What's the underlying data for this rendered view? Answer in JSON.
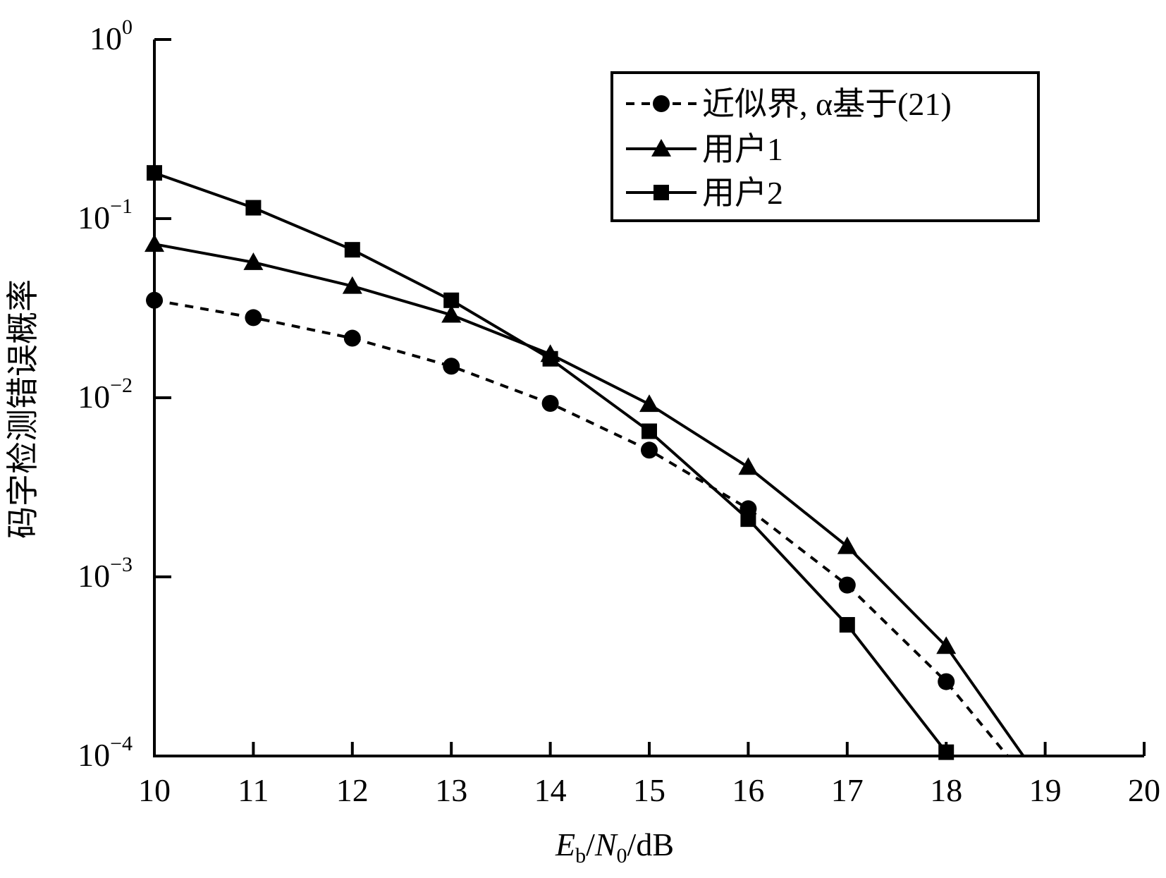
{
  "chart_data": {
    "type": "line",
    "title": "",
    "xlabel": "E_b/N_0/dB",
    "xlabel_parts": {
      "e": "E",
      "b": "b",
      "slash1": "/",
      "n": "N",
      "zero": "0",
      "rest": "/dB"
    },
    "ylabel": "码字检测错误概率",
    "x_scale": "linear",
    "y_scale": "log",
    "xlim": [
      10,
      20
    ],
    "ylim": [
      0.0001,
      1
    ],
    "x_ticks": [
      10,
      11,
      12,
      13,
      14,
      15,
      16,
      17,
      18,
      19,
      20
    ],
    "x_tick_labels": [
      "10",
      "11",
      "12",
      "13",
      "14",
      "15",
      "16",
      "17",
      "18",
      "19",
      "20"
    ],
    "y_ticks": [
      1,
      0.1,
      0.01,
      0.001,
      0.0001
    ],
    "y_tick_labels": [
      {
        "base": "10",
        "exp": "0"
      },
      {
        "base": "10",
        "exp": "−1"
      },
      {
        "base": "10",
        "exp": "−2"
      },
      {
        "base": "10",
        "exp": "−3"
      },
      {
        "base": "10",
        "exp": "−4"
      }
    ],
    "grid": false,
    "legend_position": "top-right",
    "series": [
      {
        "name": "近似界, α基于(21)",
        "marker": "circle",
        "line_style": "dashed",
        "color": "#000000",
        "x": [
          10,
          11,
          12,
          13,
          14,
          15,
          16,
          17,
          18,
          18.62
        ],
        "y": [
          0.035,
          0.028,
          0.0215,
          0.015,
          0.0093,
          0.0051,
          0.0024,
          0.0009,
          0.00026,
          0.0001
        ],
        "marked": [
          true,
          true,
          true,
          true,
          true,
          true,
          true,
          true,
          true,
          false
        ]
      },
      {
        "name": "用户1",
        "marker": "triangle",
        "line_style": "solid",
        "color": "#000000",
        "x": [
          10,
          11,
          12,
          13,
          14,
          15,
          16,
          17,
          18,
          18.78
        ],
        "y": [
          0.072,
          0.057,
          0.042,
          0.029,
          0.0175,
          0.0092,
          0.0041,
          0.00148,
          0.00041,
          0.0001
        ],
        "marked": [
          true,
          true,
          true,
          true,
          true,
          true,
          true,
          true,
          true,
          false
        ]
      },
      {
        "name": "用户2",
        "marker": "square",
        "line_style": "solid",
        "color": "#000000",
        "x": [
          10,
          11,
          12,
          13,
          14,
          15,
          16,
          17,
          18
        ],
        "y": [
          0.18,
          0.115,
          0.067,
          0.035,
          0.0165,
          0.0065,
          0.0021,
          0.00054,
          0.000105
        ],
        "marked": [
          true,
          true,
          true,
          true,
          true,
          true,
          true,
          true,
          true
        ]
      }
    ]
  }
}
